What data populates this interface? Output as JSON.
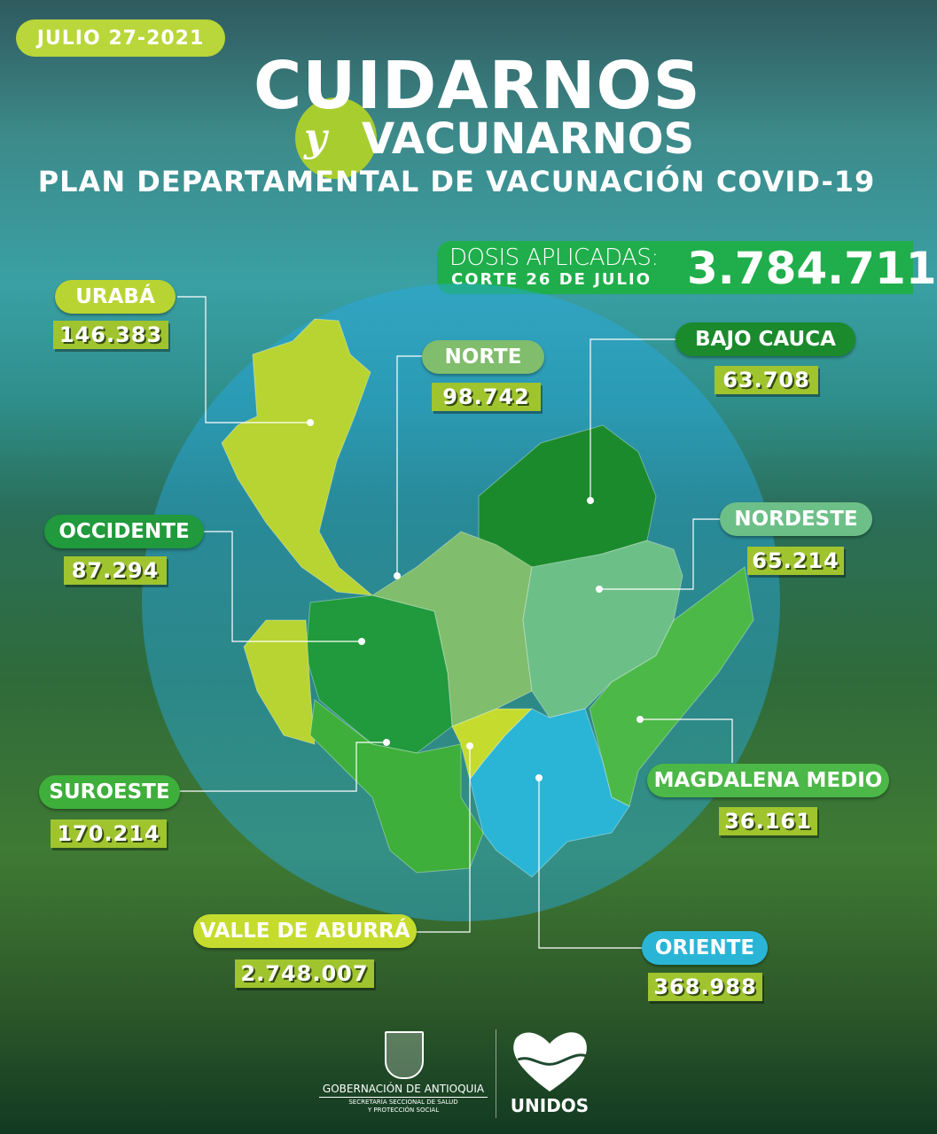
{
  "date": "JULIO 27-2021",
  "title": {
    "line1": "CUIDARNOS",
    "line2_prefix": "y",
    "line2": "VACUNARNOS",
    "subtitle_regular": "PLAN DEPARTAMENTAL DE ",
    "subtitle_bold": "VACUNACIÓN COVID-19"
  },
  "total": {
    "label": "DOSIS APLICADAS:",
    "cutoff": "CORTE 26 DE JULIO",
    "value": "3.784.711"
  },
  "regions": [
    {
      "name": "URABÁ",
      "value": "146.383",
      "color": "#b8d432"
    },
    {
      "name": "NORTE",
      "value": "98.742",
      "color": "#80bd6c"
    },
    {
      "name": "BAJO CAUCA",
      "value": "63.708",
      "color": "#1b8a2c"
    },
    {
      "name": "OCCIDENTE",
      "value": "87.294",
      "color": "#209a3c"
    },
    {
      "name": "NORDESTE",
      "value": "65.214",
      "color": "#6dbf88"
    },
    {
      "name": "SUROESTE",
      "value": "170.214",
      "color": "#3eaf3a"
    },
    {
      "name": "MAGDALENA MEDIO",
      "value": "36.161",
      "color": "#4cb848"
    },
    {
      "name": "VALLE  DE ABURRÁ",
      "value": "2.748.007",
      "color": "#c5dc2e"
    },
    {
      "name": "ORIENTE",
      "value": "368.988",
      "color": "#2ab5d6"
    }
  ],
  "footer": {
    "gov": "GOBERNACIÓN DE ANTIOQUIA",
    "secretaria1": "SECRETARÍA SECCIONAL DE SALUD",
    "secretaria2": "Y PROTECCIÓN SOCIAL",
    "brand": "UNIDOS"
  }
}
